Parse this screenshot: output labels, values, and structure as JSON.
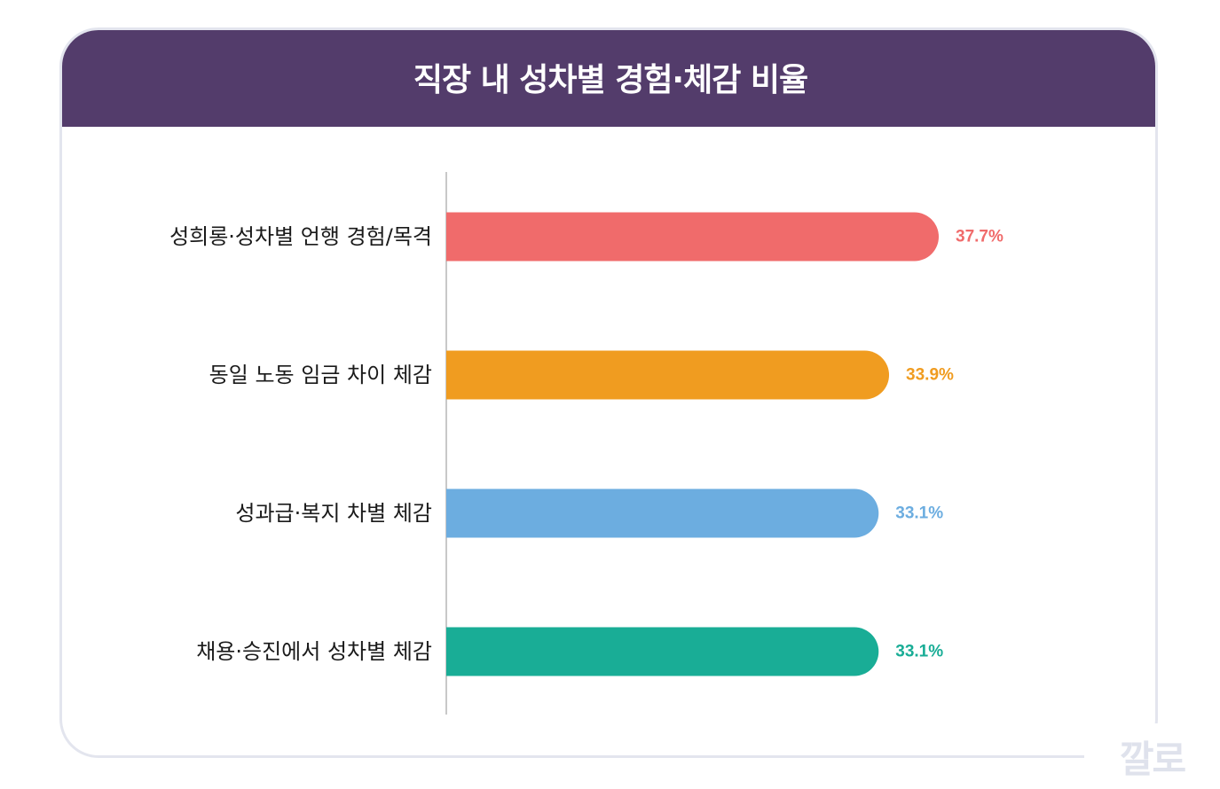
{
  "chart_data": {
    "type": "bar",
    "orientation": "horizontal",
    "title": "직장 내 성차별 경험·체감 비율",
    "categories": [
      "성희롱·성차별 언행 경험/목격",
      "동일 노동 임금 차이 체감",
      "성과급·복지 차별 체감",
      "채용·승진에서 성차별 체감"
    ],
    "values": [
      37.7,
      33.9,
      33.1,
      33.1
    ],
    "value_labels": [
      "37.7%",
      "33.9%",
      "33.1%",
      "33.1%"
    ],
    "colors": [
      "#f06b6b",
      "#f09c20",
      "#6cade0",
      "#19ad96"
    ],
    "xlim": [
      0,
      37.7
    ],
    "grid": false,
    "legend": "none"
  },
  "watermark": "깔로"
}
